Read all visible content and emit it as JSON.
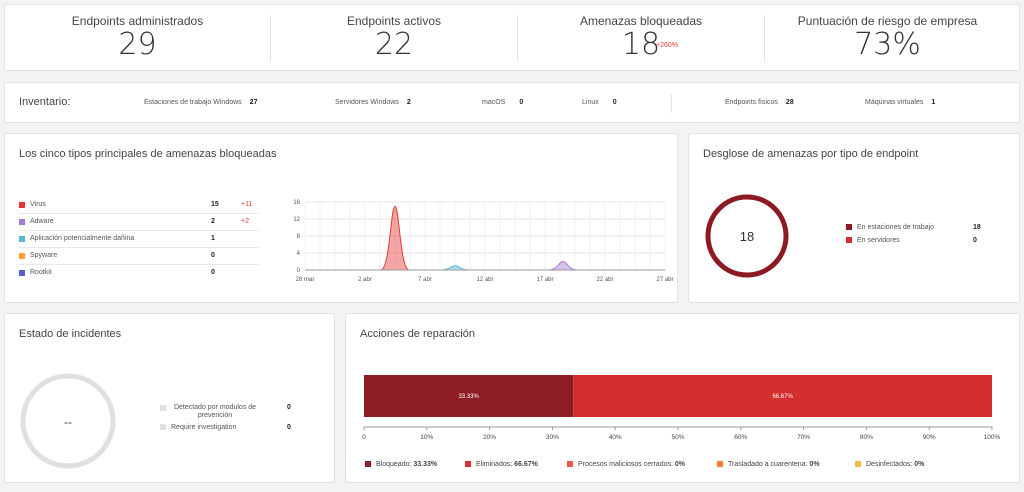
{
  "kpis": [
    {
      "label": "Endpoints administrados",
      "value": "29"
    },
    {
      "label": "Endpoints activos",
      "value": "22"
    },
    {
      "label": "Amenazas bloqueadas",
      "value": "18",
      "badge": "+260%"
    },
    {
      "label": "Puntuación de riesgo de empresa",
      "value": "73%"
    }
  ],
  "inventory": {
    "title": "Inventario:",
    "items": [
      {
        "label": "Estaciones de trabajo Windows",
        "value": "27"
      },
      {
        "label": "Servidores Windows",
        "value": "2"
      },
      {
        "label": "macOS",
        "value": "0"
      },
      {
        "label": "Linux",
        "value": "0"
      },
      {
        "label": "Endpoints físicos",
        "value": "28"
      },
      {
        "label": "Máquinas virtuales",
        "value": "1"
      }
    ]
  },
  "threats": {
    "title": "Los cinco tipos principales de amenazas bloqueadas",
    "items": [
      {
        "label": "Virus",
        "value": "15",
        "delta": "+11",
        "color": "#e53935"
      },
      {
        "label": "Adware",
        "value": "2",
        "delta": "+2",
        "color": "#a678d6"
      },
      {
        "label": "Aplicación potencialmente dañina",
        "value": "1",
        "delta": "",
        "color": "#5ab4d6"
      },
      {
        "label": "Spyware",
        "value": "0",
        "delta": "",
        "color": "#f5a142"
      },
      {
        "label": "Rootkit",
        "value": "0",
        "delta": "",
        "color": "#5560c8"
      }
    ],
    "chart_data": {
      "type": "area",
      "x": [
        "28 mar",
        "2 abr",
        "7 abr",
        "12 abr",
        "17 abr",
        "22 abr",
        "27 abr"
      ],
      "yticks": [
        0,
        4,
        8,
        12,
        16
      ],
      "ylim": [
        0,
        16
      ],
      "series": [
        {
          "name": "Virus",
          "color": "#e53935",
          "peak_x": 7.5,
          "value": 15
        },
        {
          "name": "Aplicación potencialmente dañina",
          "color": "#5ab4d6",
          "peak_x": 12.5,
          "value": 1
        },
        {
          "name": "Adware",
          "color": "#a678d6",
          "peak_x": 21.5,
          "value": 2
        }
      ]
    }
  },
  "breakdown": {
    "title": "Desglose de amenazas por tipo de endpoint",
    "total": "18",
    "items": [
      {
        "label": "En estaciones de trabajo",
        "value": "18",
        "color": "#8b1a22"
      },
      {
        "label": "En servidores",
        "value": "0",
        "color": "#d32f2f"
      }
    ]
  },
  "incidents": {
    "title": "Estado de incidentes",
    "center": "--",
    "items": [
      {
        "label": "Detectado por modulos de prevención",
        "value": "0"
      },
      {
        "label": "Require investigation",
        "value": "0"
      }
    ]
  },
  "remediation": {
    "title": "Acciones de reparación",
    "chart_data": {
      "type": "bar",
      "stacked": true,
      "orientation": "horizontal",
      "xticks": [
        "0",
        "10%",
        "20%",
        "30%",
        "40%",
        "50%",
        "60%",
        "70%",
        "80%",
        "90%",
        "100%"
      ],
      "series": [
        {
          "name": "Bloqueado",
          "value": 33.33,
          "label": "33.33%",
          "color": "#8e1e25"
        },
        {
          "name": "Eliminados",
          "value": 66.67,
          "label": "66.67%",
          "color": "#d32f2f"
        },
        {
          "name": "Procesos maliciosos cerrados",
          "value": 0,
          "label": "0%",
          "color": "#ef5350"
        },
        {
          "name": "Trasladado a cuarentena",
          "value": 0,
          "label": "0%",
          "color": "#f57c3a"
        },
        {
          "name": "Desinfectados",
          "value": 0,
          "label": "0%",
          "color": "#ffb74d"
        }
      ]
    }
  }
}
